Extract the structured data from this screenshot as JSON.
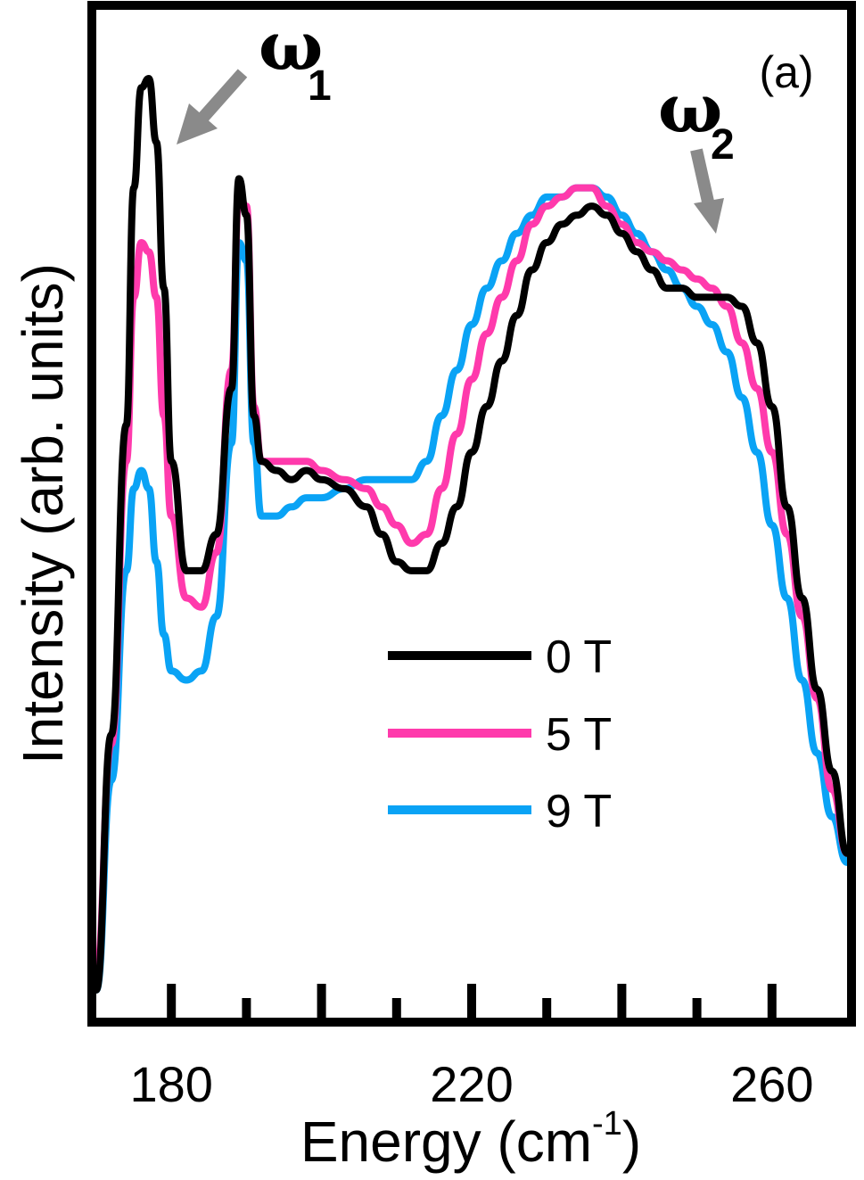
{
  "chart_data": {
    "type": "line",
    "title": "",
    "xlabel": "Energy (cm",
    "xlabel_sup": "-1",
    "xlabel_end": ")",
    "ylabel": "Intensity (arb. units)",
    "xlim": [
      170,
      270
    ],
    "ylim": [
      0,
      1
    ],
    "x_major_ticks": [
      180,
      200,
      220,
      240,
      260
    ],
    "x_tick_labels": [
      "180",
      "220",
      "260"
    ],
    "x_tick_label_values": [
      180,
      220,
      260
    ],
    "x_minor_ticks": [
      190,
      210,
      230,
      250
    ],
    "y_ticks": [],
    "grid": false,
    "legend_position": "center-right",
    "panel_label": "(a)",
    "annotations": [
      {
        "symbol": "ω",
        "sub": "1",
        "x": 177,
        "y": 0.96
      },
      {
        "symbol": "ω",
        "sub": "2",
        "x": 254,
        "y": 0.78
      }
    ],
    "x": [
      170,
      172,
      174,
      175,
      176,
      177,
      178,
      179,
      180,
      182,
      184,
      186,
      188,
      189,
      190,
      191,
      192,
      194,
      196,
      198,
      200,
      203,
      206,
      208,
      210,
      212,
      214,
      216,
      218,
      220,
      222,
      224,
      226,
      228,
      230,
      232,
      234,
      236,
      238,
      240,
      242,
      244,
      246,
      248,
      250,
      252,
      254,
      256,
      258,
      260,
      262,
      264,
      266,
      268,
      270
    ],
    "series": [
      {
        "name": "0 T",
        "color": "#000000",
        "values": [
          0.0,
          0.28,
          0.62,
          0.88,
          0.99,
          1.0,
          0.93,
          0.77,
          0.58,
          0.46,
          0.46,
          0.5,
          0.66,
          0.89,
          0.85,
          0.63,
          0.58,
          0.57,
          0.56,
          0.57,
          0.56,
          0.55,
          0.53,
          0.5,
          0.47,
          0.46,
          0.46,
          0.49,
          0.53,
          0.59,
          0.64,
          0.69,
          0.74,
          0.79,
          0.82,
          0.84,
          0.85,
          0.86,
          0.85,
          0.83,
          0.81,
          0.79,
          0.77,
          0.77,
          0.76,
          0.76,
          0.76,
          0.75,
          0.71,
          0.64,
          0.53,
          0.43,
          0.33,
          0.24,
          0.15
        ]
      },
      {
        "name": "5 T",
        "color": "#ff3aac",
        "values": [
          0.02,
          0.27,
          0.58,
          0.76,
          0.82,
          0.81,
          0.76,
          0.63,
          0.52,
          0.43,
          0.42,
          0.48,
          0.68,
          0.87,
          0.86,
          0.64,
          0.58,
          0.58,
          0.58,
          0.58,
          0.57,
          0.56,
          0.55,
          0.53,
          0.51,
          0.49,
          0.5,
          0.55,
          0.61,
          0.67,
          0.72,
          0.76,
          0.8,
          0.84,
          0.86,
          0.87,
          0.88,
          0.88,
          0.86,
          0.84,
          0.82,
          0.81,
          0.8,
          0.79,
          0.78,
          0.77,
          0.75,
          0.71,
          0.66,
          0.59,
          0.5,
          0.41,
          0.32,
          0.22,
          0.15
        ]
      },
      {
        "name": "9 T",
        "color": "#0aa3f5",
        "values": [
          0.0,
          0.23,
          0.46,
          0.55,
          0.57,
          0.55,
          0.47,
          0.39,
          0.35,
          0.34,
          0.35,
          0.41,
          0.6,
          0.82,
          0.8,
          0.6,
          0.52,
          0.52,
          0.53,
          0.54,
          0.54,
          0.55,
          0.56,
          0.56,
          0.56,
          0.56,
          0.58,
          0.63,
          0.68,
          0.73,
          0.77,
          0.8,
          0.83,
          0.85,
          0.87,
          0.87,
          0.88,
          0.88,
          0.87,
          0.85,
          0.83,
          0.81,
          0.79,
          0.77,
          0.75,
          0.73,
          0.7,
          0.65,
          0.59,
          0.51,
          0.43,
          0.34,
          0.26,
          0.19,
          0.14
        ]
      }
    ]
  }
}
